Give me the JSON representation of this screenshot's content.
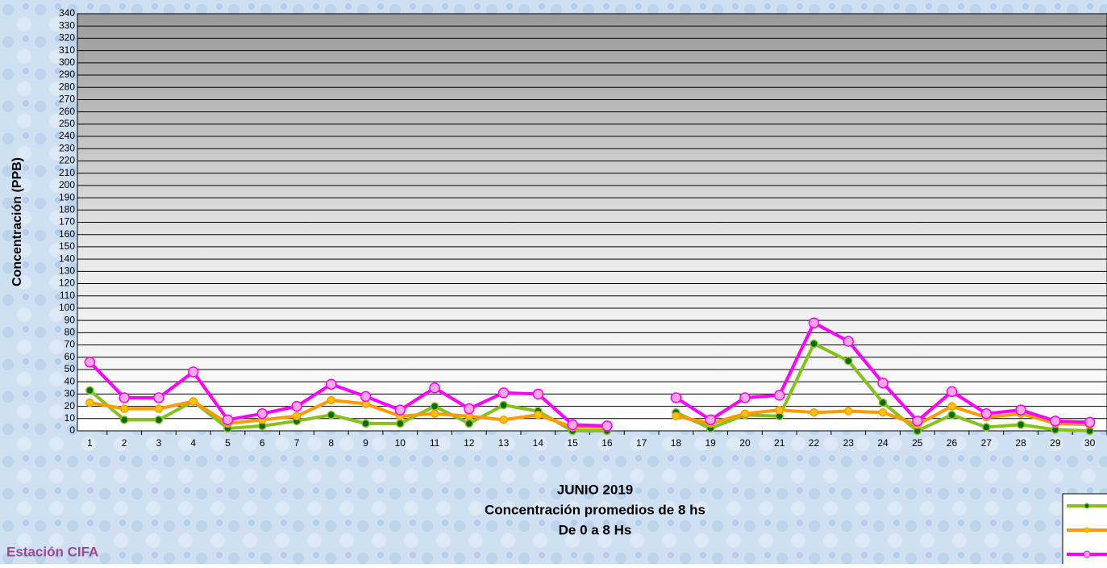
{
  "chart_data": {
    "type": "line",
    "title": "JUNIO 2019",
    "subtitle": [
      "Concentración promedios de 8 hs",
      "De 0 a 8 Hs"
    ],
    "annotation": "Estación CIFA",
    "ylabel": "Concentración  (PPB)",
    "categories": [
      "1",
      "2",
      "3",
      "4",
      "5",
      "6",
      "7",
      "8",
      "9",
      "10",
      "11",
      "12",
      "13",
      "14",
      "15",
      "16",
      "17",
      "18",
      "19",
      "20",
      "21",
      "22",
      "23",
      "24",
      "25",
      "26",
      "27",
      "28",
      "29",
      "30"
    ],
    "series": [
      {
        "color": "#86c21a",
        "marker": "#0b6b12",
        "values": [
          33,
          9,
          9,
          24,
          2,
          4,
          8,
          13,
          6,
          6,
          20,
          6,
          21,
          16,
          0,
          0,
          null,
          15,
          2,
          13,
          12,
          71,
          57,
          23,
          0,
          13,
          3,
          5,
          1,
          0
        ]
      },
      {
        "color": "#ff9a00",
        "marker": "#ffc400",
        "values": [
          23,
          18,
          18,
          24,
          6,
          9,
          12,
          25,
          22,
          12,
          14,
          12,
          9,
          13,
          3,
          3,
          null,
          12,
          6,
          14,
          17,
          15,
          16,
          15,
          5,
          20,
          11,
          14,
          6,
          5
        ]
      },
      {
        "color": "#ff00ff",
        "marker": "#ffa8e8",
        "values": [
          56,
          27,
          27,
          48,
          9,
          14,
          20,
          38,
          28,
          17,
          35,
          18,
          31,
          30,
          5,
          4,
          null,
          27,
          9,
          27,
          29,
          88,
          73,
          39,
          8,
          32,
          14,
          17,
          8,
          7
        ]
      }
    ],
    "ylim": [
      0,
      340
    ],
    "yticks": [
      0,
      10,
      20,
      30,
      40,
      50,
      60,
      70,
      80,
      90,
      100,
      110,
      120,
      130,
      140,
      150,
      160,
      170,
      180,
      190,
      200,
      210,
      220,
      230,
      240,
      250,
      260,
      270,
      280,
      290,
      300,
      310,
      320,
      330,
      340
    ],
    "grid": true
  }
}
